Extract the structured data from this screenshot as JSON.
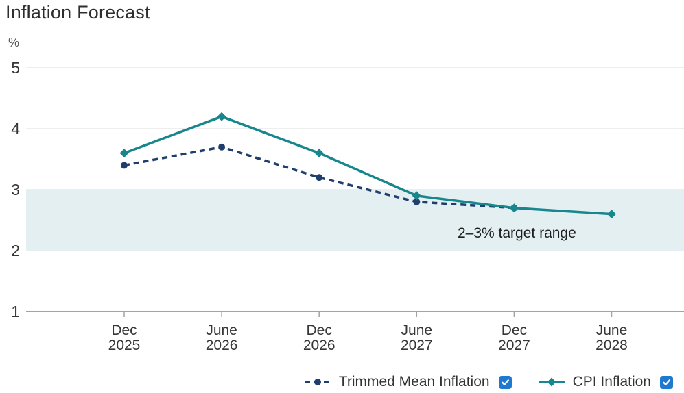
{
  "chart_data": {
    "type": "line",
    "title": "Inflation Forecast",
    "ylabel": "%",
    "ylim": [
      1,
      5
    ],
    "yticks": [
      5,
      4,
      3,
      2,
      1
    ],
    "grid": "horizontal",
    "legend_position": "bottom-right",
    "categories": [
      "Dec 2025",
      "June 2026",
      "Dec 2026",
      "June 2027",
      "Dec 2027",
      "June 2028"
    ],
    "series": [
      {
        "name": "Trimmed Mean Inflation",
        "values": [
          3.4,
          3.7,
          3.2,
          2.8,
          2.7,
          null
        ],
        "color": "#1f3e6d",
        "line_style": "dashed",
        "marker": "circle",
        "visible": true
      },
      {
        "name": "CPI Inflation",
        "values": [
          3.6,
          4.2,
          3.6,
          2.9,
          2.7,
          2.6
        ],
        "color": "#17868d",
        "line_style": "solid",
        "marker": "diamond",
        "visible": true
      }
    ],
    "target_band": {
      "from": 2,
      "to": 3,
      "label": "2–3% target range",
      "color": "#e3eff1"
    }
  },
  "colors": {
    "checkbox_checked": "#1e7ad1",
    "gridline": "#e8e8e8",
    "axis": "#a3a3a3",
    "tick_label": "#363636"
  }
}
